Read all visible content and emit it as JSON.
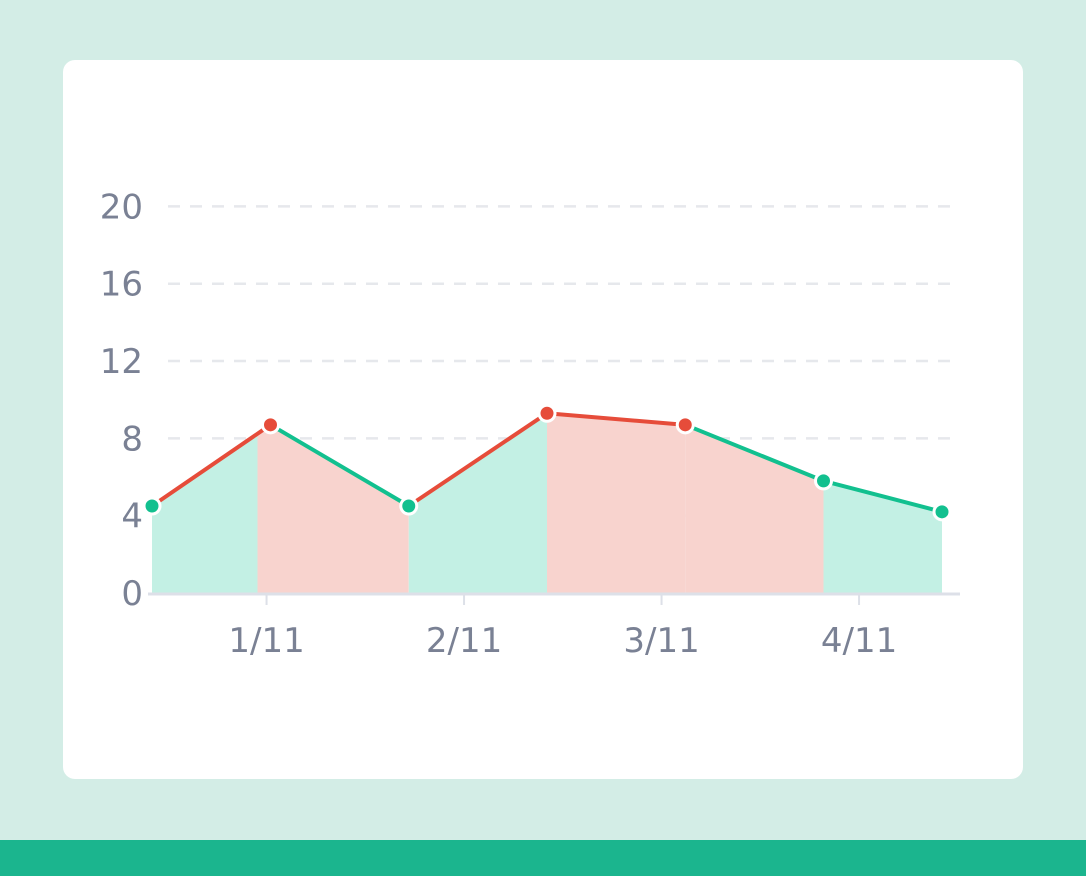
{
  "colors": {
    "background": "#d3ede6",
    "card": "#ffffff",
    "footer": "#1bb58e",
    "up": "#12c08f",
    "down": "#e64c3a",
    "up_fill": "#c3f0e4",
    "down_fill": "#f8d3ce",
    "grid": "#e6e8ec",
    "axis": "#dde0e8",
    "tick_text": "#7a8194"
  },
  "chart_data": {
    "type": "area",
    "x_ticks": [
      "1/11",
      "2/11",
      "3/11",
      "4/11"
    ],
    "y_ticks": [
      0,
      4,
      8,
      12,
      16,
      20
    ],
    "ylim": [
      0,
      20
    ],
    "grid": true,
    "series": [
      {
        "points": [
          {
            "x": 0.0,
            "y": 4.5,
            "trend": "up"
          },
          {
            "x": 0.6,
            "y": 8.7,
            "trend": "down"
          },
          {
            "x": 1.3,
            "y": 4.5,
            "trend": "up"
          },
          {
            "x": 2.0,
            "y": 9.3,
            "trend": "down"
          },
          {
            "x": 2.7,
            "y": 8.7,
            "trend": "down"
          },
          {
            "x": 3.4,
            "y": 5.8,
            "trend": "up"
          },
          {
            "x": 4.0,
            "y": 4.2,
            "trend": "up"
          }
        ]
      }
    ],
    "x_tick_positions": [
      0.58,
      1.58,
      2.58,
      3.58
    ]
  }
}
